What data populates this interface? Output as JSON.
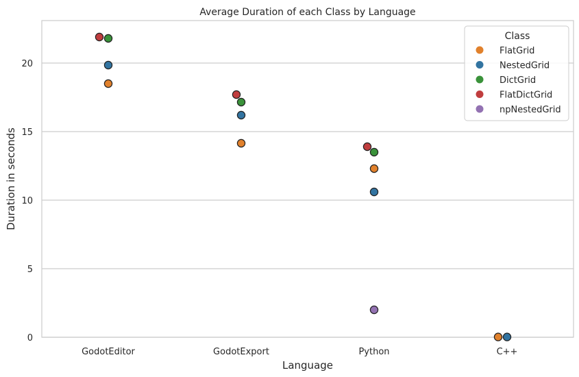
{
  "chart_data": {
    "type": "scatter",
    "title": "Average Duration of each Class by Language",
    "xlabel": "Language",
    "ylabel": "Duration in seconds",
    "categories": [
      "GodotEditor",
      "GodotExport",
      "Python",
      "C++"
    ],
    "ylim": [
      0,
      23.1
    ],
    "yticks": [
      0,
      5,
      10,
      15,
      20
    ],
    "grid": true,
    "legend": {
      "title": "Class",
      "placement": "top-right"
    },
    "series": [
      {
        "name": "FlatGrid",
        "color": "#e1812c",
        "values": [
          18.5,
          14.15,
          12.3,
          0.02
        ]
      },
      {
        "name": "NestedGrid",
        "color": "#3274a1",
        "values": [
          19.85,
          16.2,
          10.6,
          0.02
        ]
      },
      {
        "name": "DictGrid",
        "color": "#3a923a",
        "values": [
          21.8,
          17.15,
          13.5,
          null
        ]
      },
      {
        "name": "FlatDictGrid",
        "color": "#c03d3e",
        "values": [
          21.9,
          17.7,
          13.9,
          null
        ]
      },
      {
        "name": "npNestedGrid",
        "color": "#9372b2",
        "values": [
          null,
          null,
          2.0,
          null
        ]
      }
    ]
  }
}
